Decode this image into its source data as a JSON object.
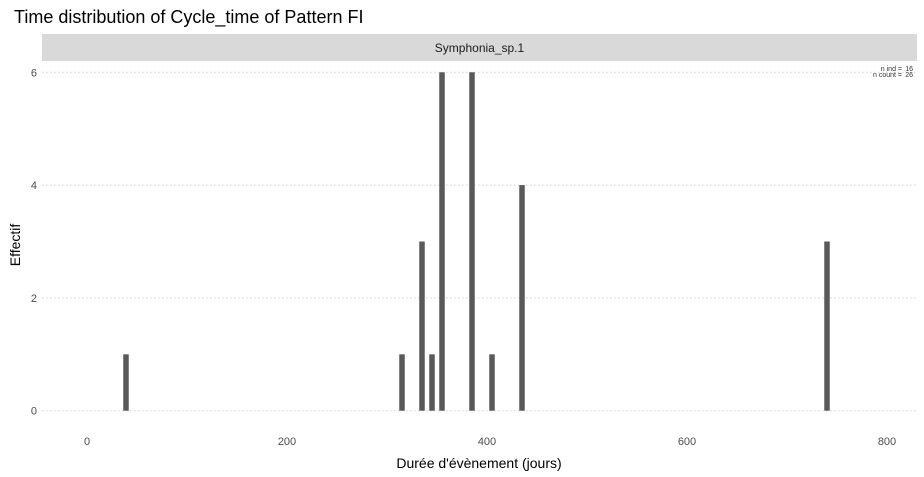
{
  "chart_data": {
    "type": "bar",
    "title": "Time distribution of Cycle_time of Pattern FI",
    "facet": "Symphonia_sp.1",
    "xlabel": "Durée d'évènement (jours)",
    "ylabel": "Effectif",
    "xlim": [
      -45,
      830
    ],
    "ylim": [
      -0.2,
      6.2
    ],
    "xticks": [
      0,
      200,
      400,
      600,
      800
    ],
    "yticks": [
      0,
      2,
      4,
      6
    ],
    "grid": true,
    "bar_color": "#595959",
    "x": [
      39,
      315,
      335,
      345,
      355,
      385,
      405,
      435,
      740
    ],
    "values": [
      1,
      1,
      3,
      1,
      6,
      6,
      1,
      4,
      3
    ],
    "annotations": [
      {
        "label": "n ind =",
        "value": "16"
      },
      {
        "label": "n count =",
        "value": "26"
      }
    ]
  }
}
